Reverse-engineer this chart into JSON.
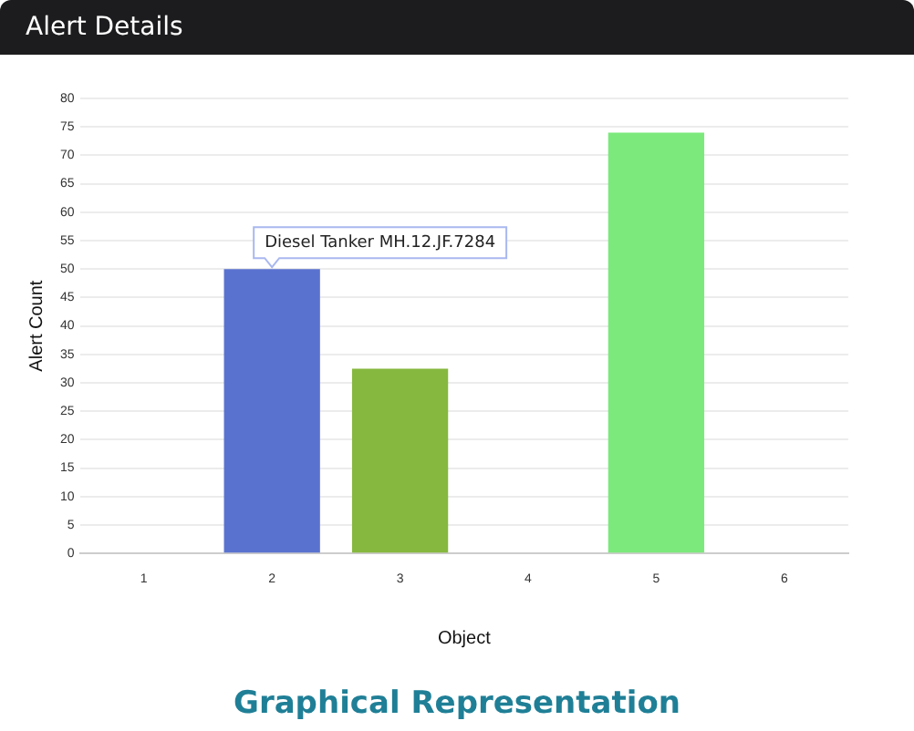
{
  "chart_data": {
    "type": "bar",
    "title": "Alert Details",
    "subtitle": "Graphical Representation",
    "xlabel": "Object",
    "ylabel": "Alert Count",
    "categories": [
      "1",
      "2",
      "3",
      "4",
      "5",
      "6"
    ],
    "values": [
      null,
      50,
      32.5,
      null,
      74,
      null
    ],
    "colors": [
      "#5a72cf",
      "#5a72cf",
      "#86b83f",
      "#86b83f",
      "#7ce97c",
      "#7ce97c"
    ],
    "ylim": [
      0,
      80
    ],
    "yticks": [
      0,
      5,
      10,
      15,
      20,
      25,
      30,
      35,
      40,
      45,
      50,
      55,
      60,
      65,
      70,
      75,
      80
    ],
    "grid": "y",
    "annotations": [
      {
        "text": "Diesel Tanker MH.12.JF.7284",
        "x": "2",
        "y": 50
      }
    ]
  }
}
